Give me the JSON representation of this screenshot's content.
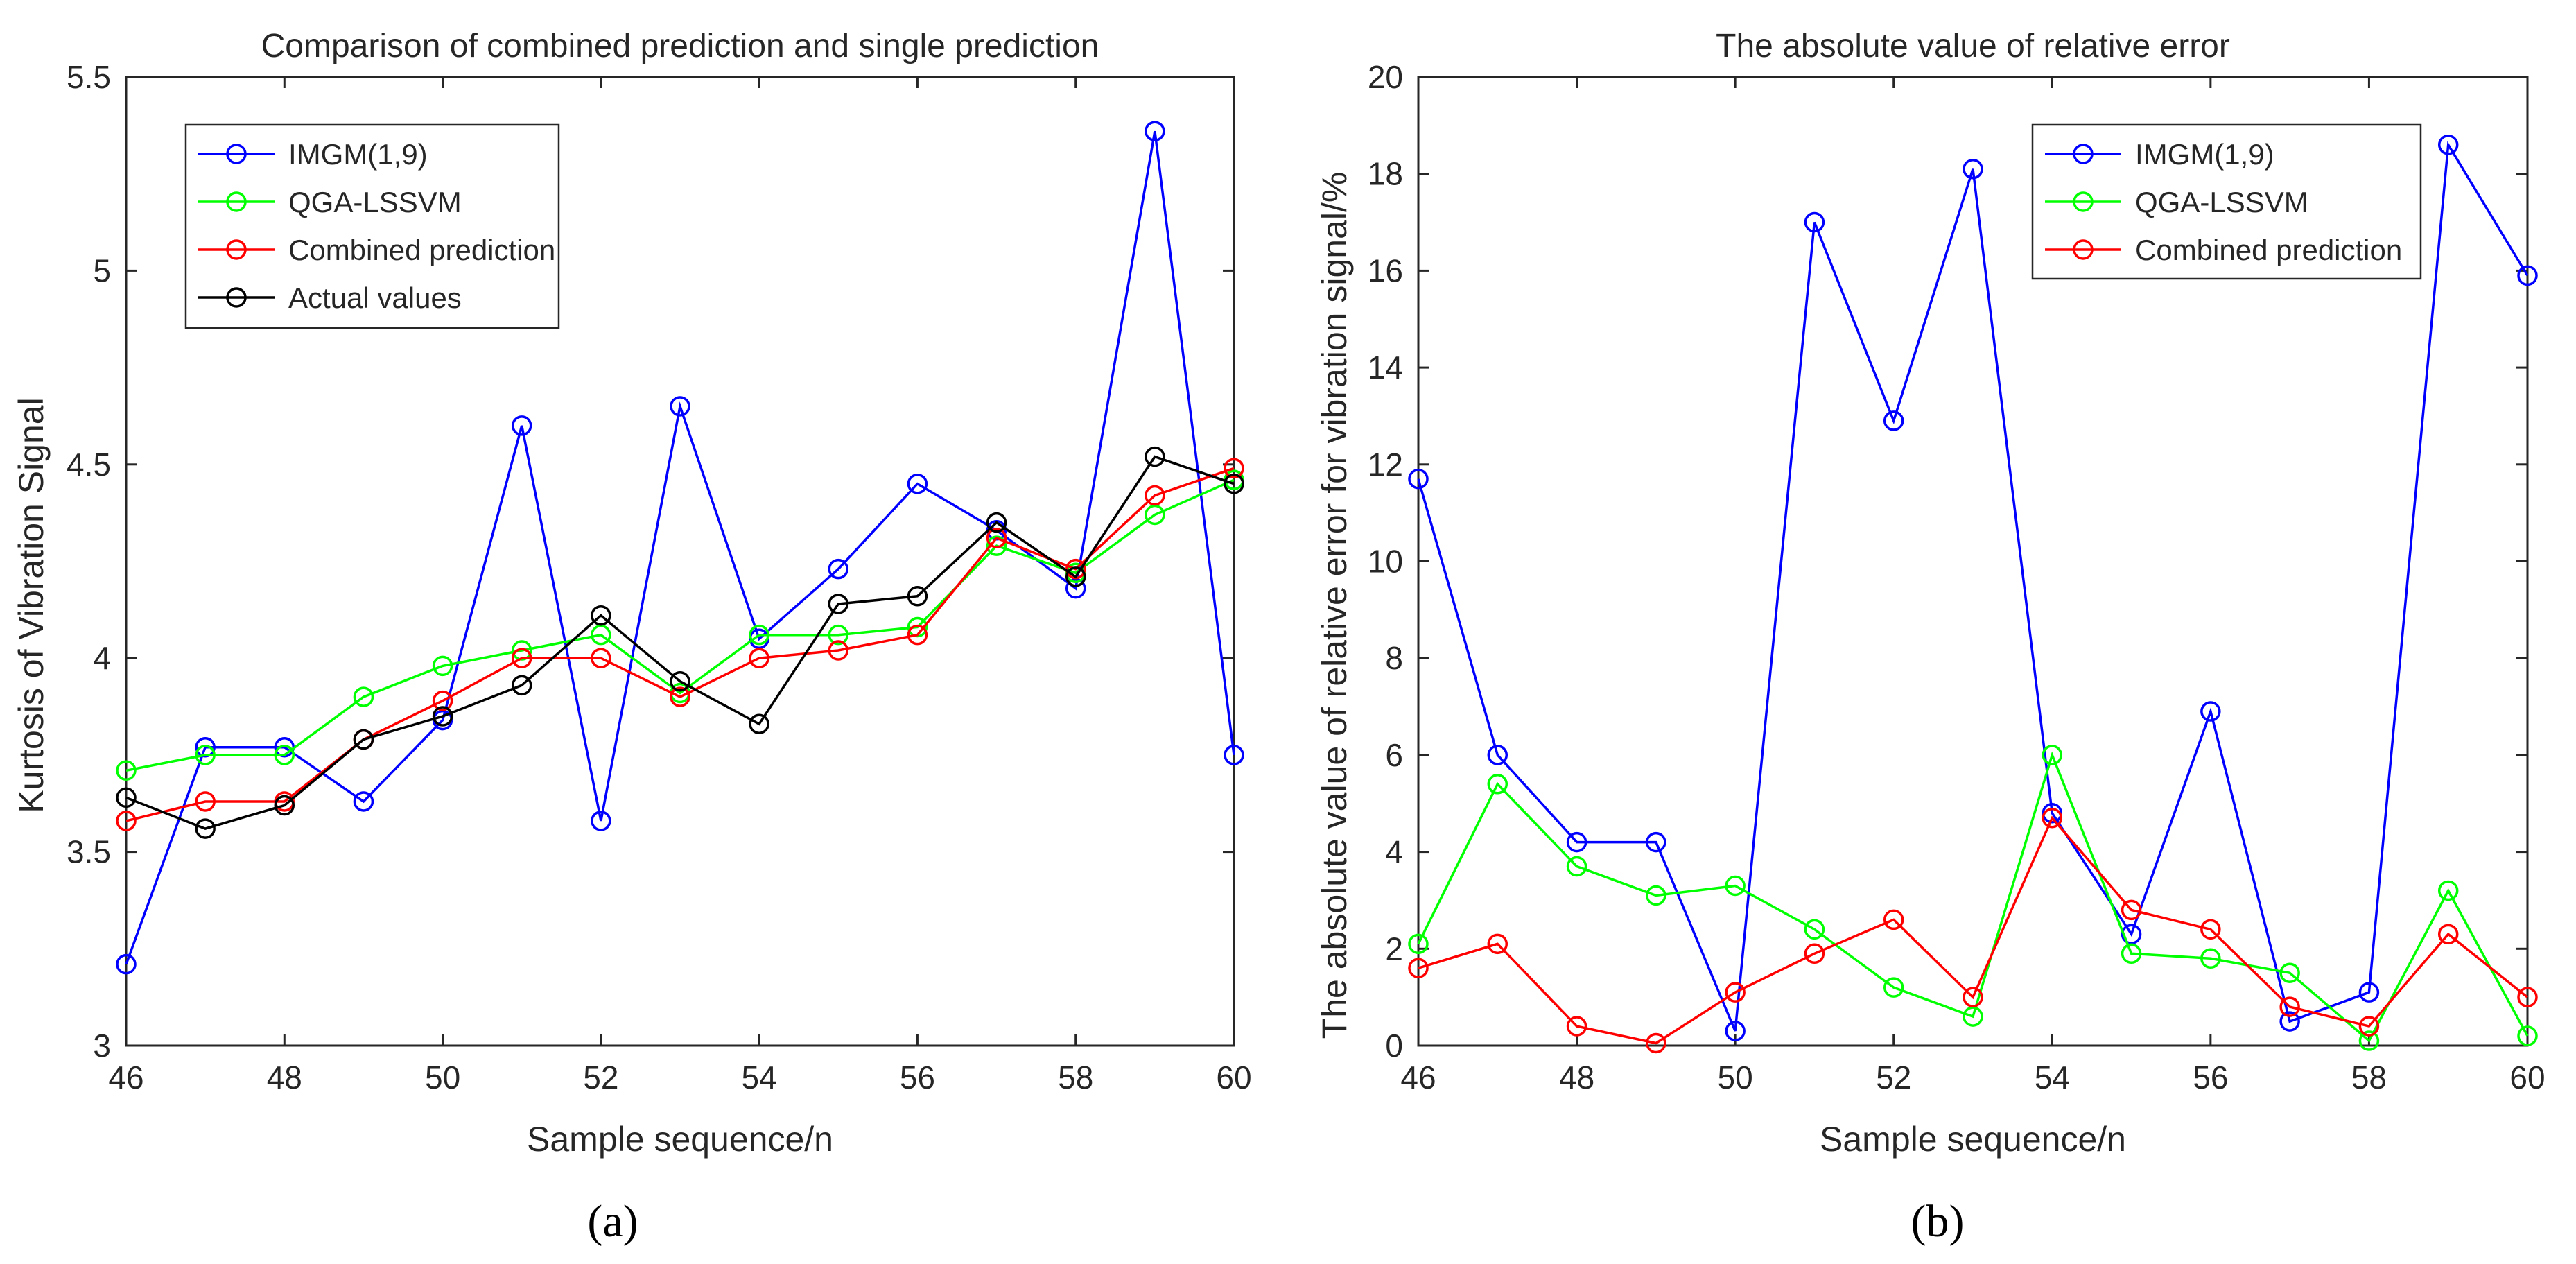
{
  "chart_data": [
    {
      "type": "line",
      "panel_label": "(a)",
      "title": "Comparison of combined prediction and single prediction",
      "xlabel": "Sample sequence/n",
      "ylabel": "Kurtosis of Vibration Signal",
      "xlim": [
        46,
        60
      ],
      "ylim": [
        3,
        5.5
      ],
      "xticks": [
        "46",
        "48",
        "50",
        "52",
        "54",
        "56",
        "58",
        "60"
      ],
      "yticks": [
        "3",
        "3.5",
        "4",
        "4.5",
        "5",
        "5.5"
      ],
      "legend_position": "top-left",
      "x": [
        46,
        47,
        48,
        49,
        50,
        51,
        52,
        53,
        54,
        55,
        56,
        57,
        58,
        59,
        60
      ],
      "series": [
        {
          "name": "IMGM(1,9)",
          "color": "#0000ff",
          "values": [
            3.21,
            3.77,
            3.77,
            3.63,
            3.84,
            4.6,
            3.58,
            4.65,
            4.05,
            4.23,
            4.45,
            4.33,
            4.18,
            5.36,
            3.75
          ]
        },
        {
          "name": "QGA-LSSVM",
          "color": "#00ff00",
          "values": [
            3.71,
            3.75,
            3.75,
            3.9,
            3.98,
            4.02,
            4.06,
            3.91,
            4.06,
            4.06,
            4.08,
            4.29,
            4.22,
            4.37,
            4.46
          ]
        },
        {
          "name": "Combined prediction",
          "color": "#ff0000",
          "values": [
            3.58,
            3.63,
            3.63,
            3.79,
            3.89,
            4.0,
            4.0,
            3.9,
            4.0,
            4.02,
            4.06,
            4.31,
            4.23,
            4.42,
            4.49
          ]
        },
        {
          "name": "Actual values",
          "color": "#000000",
          "values": [
            3.64,
            3.56,
            3.62,
            3.79,
            3.85,
            3.93,
            4.11,
            3.94,
            3.83,
            4.14,
            4.16,
            4.35,
            4.21,
            4.52,
            4.45
          ]
        }
      ]
    },
    {
      "type": "line",
      "panel_label": "(b)",
      "title": "The absolute value of relative error",
      "xlabel": "Sample sequence/n",
      "ylabel": "The absolute value of relative error for vibration signal/%",
      "xlim": [
        46,
        60
      ],
      "ylim": [
        0,
        20
      ],
      "xticks": [
        "46",
        "48",
        "50",
        "52",
        "54",
        "56",
        "58",
        "60"
      ],
      "yticks": [
        "0",
        "2",
        "4",
        "6",
        "8",
        "10",
        "12",
        "14",
        "16",
        "18",
        "20"
      ],
      "legend_position": "top-right",
      "x": [
        46,
        47,
        48,
        49,
        50,
        51,
        52,
        53,
        54,
        55,
        56,
        57,
        58,
        59,
        60
      ],
      "series": [
        {
          "name": "IMGM(1,9)",
          "color": "#0000ff",
          "values": [
            11.7,
            6.0,
            4.2,
            4.2,
            0.3,
            17.0,
            12.9,
            18.1,
            4.8,
            2.3,
            6.9,
            0.5,
            1.1,
            18.6,
            15.9
          ]
        },
        {
          "name": "QGA-LSSVM",
          "color": "#00ff00",
          "values": [
            2.1,
            5.4,
            3.7,
            3.1,
            3.3,
            2.4,
            1.2,
            0.6,
            6.0,
            1.9,
            1.8,
            1.5,
            0.1,
            3.2,
            0.2
          ]
        },
        {
          "name": "Combined prediction",
          "color": "#ff0000",
          "values": [
            1.6,
            2.1,
            0.4,
            0.05,
            1.1,
            1.9,
            2.6,
            1.0,
            4.7,
            2.8,
            2.4,
            0.8,
            0.4,
            2.3,
            1.0
          ]
        }
      ]
    }
  ]
}
